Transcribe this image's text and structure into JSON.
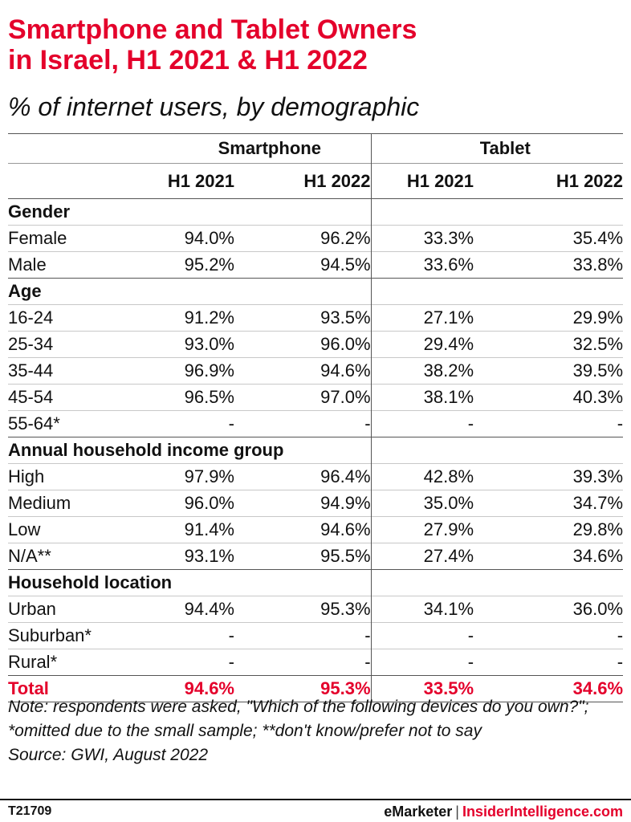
{
  "header": {
    "title_line1": "Smartphone and Tablet Owners",
    "title_line2": "in Israel, H1 2021 & H1 2022",
    "subtitle": "% of internet users, by demographic"
  },
  "chart_data": {
    "type": "table",
    "column_groups": [
      "Smartphone",
      "Tablet"
    ],
    "columns": [
      "H1 2021",
      "H1 2022",
      "H1 2021",
      "H1 2022"
    ],
    "sections": [
      {
        "name": "Gender",
        "rows": [
          {
            "label": "Female",
            "values": [
              "94.0%",
              "96.2%",
              "33.3%",
              "35.4%"
            ]
          },
          {
            "label": "Male",
            "values": [
              "95.2%",
              "94.5%",
              "33.6%",
              "33.8%"
            ]
          }
        ]
      },
      {
        "name": "Age",
        "rows": [
          {
            "label": "16-24",
            "values": [
              "91.2%",
              "93.5%",
              "27.1%",
              "29.9%"
            ]
          },
          {
            "label": "25-34",
            "values": [
              "93.0%",
              "96.0%",
              "29.4%",
              "32.5%"
            ]
          },
          {
            "label": "35-44",
            "values": [
              "96.9%",
              "94.6%",
              "38.2%",
              "39.5%"
            ]
          },
          {
            "label": "45-54",
            "values": [
              "96.5%",
              "97.0%",
              "38.1%",
              "40.3%"
            ]
          },
          {
            "label": "55-64*",
            "values": [
              "-",
              "-",
              "-",
              "-"
            ]
          }
        ]
      },
      {
        "name": "Annual household income group",
        "rows": [
          {
            "label": "High",
            "values": [
              "97.9%",
              "96.4%",
              "42.8%",
              "39.3%"
            ]
          },
          {
            "label": "Medium",
            "values": [
              "96.0%",
              "94.9%",
              "35.0%",
              "34.7%"
            ]
          },
          {
            "label": "Low",
            "values": [
              "91.4%",
              "94.6%",
              "27.9%",
              "29.8%"
            ]
          },
          {
            "label": "N/A**",
            "values": [
              "93.1%",
              "95.5%",
              "27.4%",
              "34.6%"
            ]
          }
        ]
      },
      {
        "name": "Household location",
        "rows": [
          {
            "label": "Urban",
            "values": [
              "94.4%",
              "95.3%",
              "34.1%",
              "36.0%"
            ]
          },
          {
            "label": "Suburban*",
            "values": [
              "-",
              "-",
              "-",
              "-"
            ]
          },
          {
            "label": "Rural*",
            "values": [
              "-",
              "-",
              "-",
              "-"
            ]
          }
        ]
      }
    ],
    "total": {
      "label": "Total",
      "values": [
        "94.6%",
        "95.3%",
        "33.5%",
        "34.6%"
      ]
    },
    "accent_color": "#e4002b"
  },
  "footer": {
    "note": "Note: respondents were asked, \"Which of the following devices do you own?\"; *omitted due to the small sample; **don't know/prefer not to say",
    "source": "Source: GWI, August 2022",
    "code": "T21709",
    "brand_left": "eMarketer",
    "brand_sep": "|",
    "brand_right": "InsiderIntelligence.com"
  }
}
